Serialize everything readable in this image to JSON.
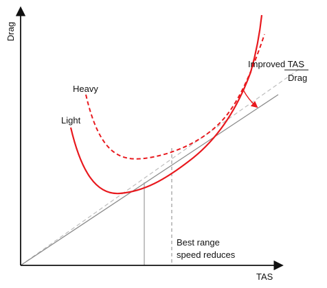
{
  "axes": {
    "x_label": "TAS",
    "y_label": "Drag"
  },
  "curves": {
    "light": {
      "label": "Light",
      "style": "solid"
    },
    "heavy": {
      "label": "Heavy",
      "style": "dashed"
    }
  },
  "annotations": {
    "ratio_top": "Improved TAS",
    "ratio_bottom": "Drag",
    "best_range_line1": "Best range",
    "best_range_line2": "speed reduces"
  },
  "colors": {
    "axis": "#111111",
    "curve": "#e8191e",
    "tangent_solid": "#8c8c8c",
    "tangent_dashed": "#bdbdbd",
    "guide": "#9a9a9a"
  }
}
